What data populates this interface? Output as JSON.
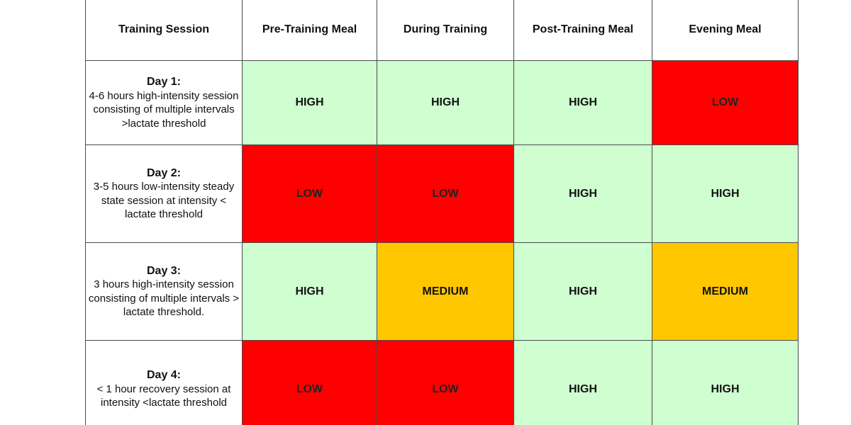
{
  "table": {
    "headers": [
      "Training Session",
      "Pre-Training Meal",
      "During Training",
      "Post-Training Meal",
      "Evening Meal"
    ],
    "rows": [
      {
        "day": "Day 1:",
        "description": "4-6 hours high-intensity session consisting of multiple intervals >lactate threshold",
        "cells": [
          "HIGH",
          "HIGH",
          "HIGH",
          "LOW"
        ]
      },
      {
        "day": "Day 2:",
        "description": "3-5 hours low-intensity steady state session at intensity < lactate threshold",
        "cells": [
          "LOW",
          "LOW",
          "HIGH",
          "HIGH"
        ]
      },
      {
        "day": "Day 3:",
        "description": "3 hours high-intensity session consisting of multiple intervals > lactate threshold.",
        "cells": [
          "HIGH",
          "MEDIUM",
          "HIGH",
          "MEDIUM"
        ]
      },
      {
        "day": "Day 4:",
        "description": "< 1 hour recovery session at intensity <lactate threshold",
        "cells": [
          "LOW",
          "LOW",
          "HIGH",
          "HIGH"
        ]
      }
    ]
  },
  "colors": {
    "HIGH": "#cfffd0",
    "LOW": "#ff0000",
    "MEDIUM": "#ffc700"
  }
}
